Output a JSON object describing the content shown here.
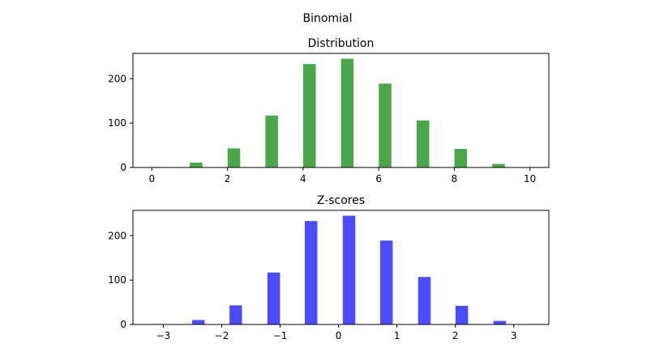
{
  "suptitle": "Binomial",
  "chart_data": [
    {
      "type": "bar",
      "title": "Distribution",
      "xlabel": "",
      "ylabel": "",
      "color": "#008000",
      "opacity": 0.7,
      "bars": [
        {
          "x": 0.17,
          "value": 1
        },
        {
          "x": 1.17,
          "value": 11
        },
        {
          "x": 2.17,
          "value": 43
        },
        {
          "x": 3.17,
          "value": 117
        },
        {
          "x": 4.17,
          "value": 233
        },
        {
          "x": 5.17,
          "value": 245
        },
        {
          "x": 6.17,
          "value": 189
        },
        {
          "x": 7.17,
          "value": 106
        },
        {
          "x": 8.17,
          "value": 42
        },
        {
          "x": 9.17,
          "value": 8
        },
        {
          "x": 10.17,
          "value": 1
        }
      ],
      "bar_width": 0.333,
      "xlim": [
        -0.5,
        10.5
      ],
      "ylim": [
        0,
        257
      ],
      "xticks": [
        0,
        2,
        4,
        6,
        8,
        10
      ],
      "xtick_labels": [
        "0",
        "2",
        "4",
        "6",
        "8",
        "10"
      ],
      "yticks": [
        0,
        100,
        200
      ],
      "ytick_labels": [
        "0",
        "100",
        "200"
      ]
    },
    {
      "type": "bar",
      "title": "Z-scores",
      "xlabel": "",
      "ylabel": "",
      "color": "#0000ff",
      "opacity": 0.7,
      "bars": [
        {
          "x": -3.05,
          "value": 1
        },
        {
          "x": -2.4,
          "value": 10
        },
        {
          "x": -1.76,
          "value": 43
        },
        {
          "x": -1.11,
          "value": 117
        },
        {
          "x": -0.47,
          "value": 233
        },
        {
          "x": 0.18,
          "value": 245
        },
        {
          "x": 0.82,
          "value": 189
        },
        {
          "x": 1.47,
          "value": 107
        },
        {
          "x": 2.11,
          "value": 42
        },
        {
          "x": 2.76,
          "value": 8
        },
        {
          "x": 3.4,
          "value": 1
        }
      ],
      "bar_width": 0.215,
      "xlim": [
        -3.52,
        3.6
      ],
      "ylim": [
        0,
        257
      ],
      "xticks": [
        -3,
        -2,
        -1,
        0,
        1,
        2,
        3
      ],
      "xtick_labels": [
        "−3",
        "−2",
        "−1",
        "0",
        "1",
        "2",
        "3"
      ],
      "yticks": [
        0,
        100,
        200
      ],
      "ytick_labels": [
        "0",
        "100",
        "200"
      ]
    }
  ]
}
